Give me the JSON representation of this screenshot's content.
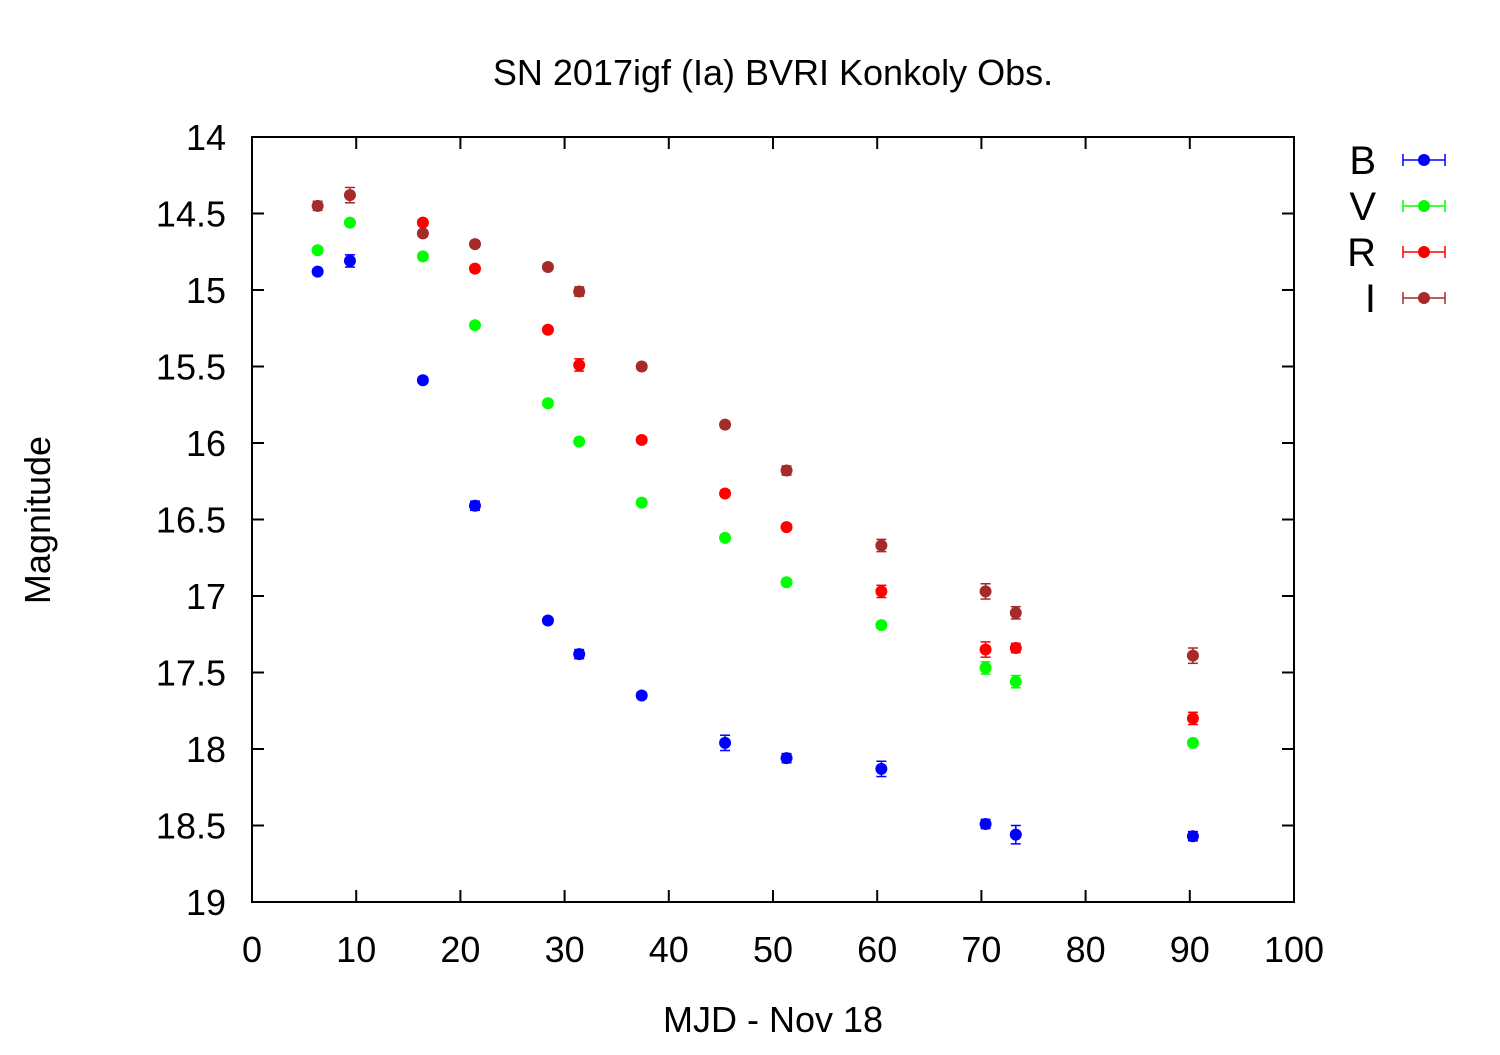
{
  "chart_data": {
    "type": "scatter",
    "title": "SN 2017igf (Ia) BVRI Konkoly Obs.",
    "xlabel": "MJD - Nov 18",
    "ylabel": "Magnitude",
    "xlim": [
      0,
      100
    ],
    "ylim": [
      14,
      19
    ],
    "y_inverted": true,
    "x_ticks": [
      "0",
      "10",
      "20",
      "30",
      "40",
      "50",
      "60",
      "70",
      "80",
      "90",
      "100"
    ],
    "y_ticks": [
      "14",
      "14.5",
      "15",
      "15.5",
      "16",
      "16.5",
      "17",
      "17.5",
      "18",
      "18.5",
      "19"
    ],
    "grid": false,
    "legend_position": "right",
    "error_bars": true,
    "series": [
      {
        "name": "B",
        "color": "#0000ff",
        "points": [
          {
            "x": 6.3,
            "y": 14.88,
            "err": 0.02
          },
          {
            "x": 9.4,
            "y": 14.81,
            "err": 0.04
          },
          {
            "x": 16.4,
            "y": 15.59,
            "err": 0.02
          },
          {
            "x": 21.4,
            "y": 16.41,
            "err": 0.03
          },
          {
            "x": 28.4,
            "y": 17.16,
            "err": 0.02
          },
          {
            "x": 31.4,
            "y": 17.38,
            "err": 0.03
          },
          {
            "x": 37.4,
            "y": 17.65,
            "err": 0.02
          },
          {
            "x": 45.4,
            "y": 17.96,
            "err": 0.05
          },
          {
            "x": 51.3,
            "y": 18.06,
            "err": 0.03
          },
          {
            "x": 60.4,
            "y": 18.13,
            "err": 0.05
          },
          {
            "x": 70.4,
            "y": 18.49,
            "err": 0.03
          },
          {
            "x": 73.3,
            "y": 18.56,
            "err": 0.06
          },
          {
            "x": 90.3,
            "y": 18.57,
            "err": 0.03
          }
        ]
      },
      {
        "name": "V",
        "color": "#00ff00",
        "points": [
          {
            "x": 6.3,
            "y": 14.74,
            "err": 0.02
          },
          {
            "x": 9.4,
            "y": 14.56,
            "err": 0.02
          },
          {
            "x": 16.4,
            "y": 14.78,
            "err": 0.02
          },
          {
            "x": 21.4,
            "y": 15.23,
            "err": 0.02
          },
          {
            "x": 28.4,
            "y": 15.74,
            "err": 0.02
          },
          {
            "x": 31.4,
            "y": 15.99,
            "err": 0.02
          },
          {
            "x": 37.4,
            "y": 16.39,
            "err": 0.02
          },
          {
            "x": 45.4,
            "y": 16.62,
            "err": 0.02
          },
          {
            "x": 51.3,
            "y": 16.91,
            "err": 0.02
          },
          {
            "x": 60.4,
            "y": 17.19,
            "err": 0.02
          },
          {
            "x": 70.4,
            "y": 17.47,
            "err": 0.04
          },
          {
            "x": 73.3,
            "y": 17.56,
            "err": 0.04
          },
          {
            "x": 90.3,
            "y": 17.96,
            "err": 0.02
          }
        ]
      },
      {
        "name": "R",
        "color": "#ff0000",
        "points": [
          {
            "x": 16.4,
            "y": 14.56,
            "err": 0.02
          },
          {
            "x": 21.4,
            "y": 14.86,
            "err": 0.02
          },
          {
            "x": 28.4,
            "y": 15.26,
            "err": 0.02
          },
          {
            "x": 31.4,
            "y": 15.49,
            "err": 0.04
          },
          {
            "x": 37.4,
            "y": 15.98,
            "err": 0.02
          },
          {
            "x": 45.4,
            "y": 16.33,
            "err": 0.02
          },
          {
            "x": 51.3,
            "y": 16.55,
            "err": 0.02
          },
          {
            "x": 60.4,
            "y": 16.97,
            "err": 0.04
          },
          {
            "x": 70.4,
            "y": 17.35,
            "err": 0.05
          },
          {
            "x": 73.3,
            "y": 17.34,
            "err": 0.03
          },
          {
            "x": 90.3,
            "y": 17.8,
            "err": 0.04
          }
        ]
      },
      {
        "name": "I",
        "color": "#a52a2a",
        "points": [
          {
            "x": 6.3,
            "y": 14.45,
            "err": 0.03
          },
          {
            "x": 9.4,
            "y": 14.38,
            "err": 0.05
          },
          {
            "x": 16.4,
            "y": 14.63,
            "err": 0.02
          },
          {
            "x": 21.4,
            "y": 14.7,
            "err": 0.02
          },
          {
            "x": 28.4,
            "y": 14.85,
            "err": 0.02
          },
          {
            "x": 31.4,
            "y": 15.01,
            "err": 0.03
          },
          {
            "x": 37.4,
            "y": 15.5,
            "err": 0.02
          },
          {
            "x": 45.4,
            "y": 15.88,
            "err": 0.02
          },
          {
            "x": 51.3,
            "y": 16.18,
            "err": 0.03
          },
          {
            "x": 60.4,
            "y": 16.67,
            "err": 0.04
          },
          {
            "x": 70.4,
            "y": 16.97,
            "err": 0.05
          },
          {
            "x": 73.3,
            "y": 17.11,
            "err": 0.04
          },
          {
            "x": 90.3,
            "y": 17.39,
            "err": 0.05
          }
        ]
      }
    ]
  }
}
